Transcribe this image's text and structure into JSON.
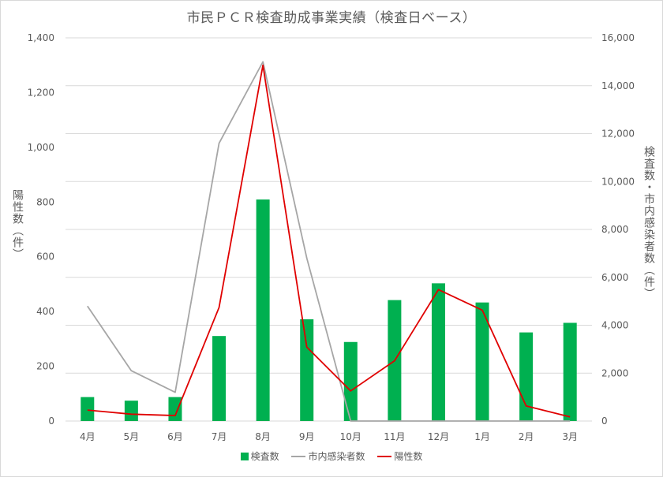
{
  "chart_data": {
    "type": "bar",
    "title": "市民ＰＣＲ検査助成事業実績（検査日ベース）",
    "categories": [
      "4月",
      "5月",
      "6月",
      "7月",
      "8月",
      "9月",
      "10月",
      "11月",
      "12月",
      "1月",
      "2月",
      "3月"
    ],
    "ylabel_left": "陽性数（件）",
    "ylabel_right": "検査数・市内感染者数（件）",
    "ylim_left": [
      0,
      1400
    ],
    "ylim_right": [
      0,
      16000
    ],
    "yticks_left": [
      "0",
      "200",
      "400",
      "600",
      "800",
      "1,000",
      "1,200",
      "1,400"
    ],
    "yticks_right": [
      "0",
      "2,000",
      "4,000",
      "6,000",
      "8,000",
      "10,000",
      "12,000",
      "14,000",
      "16,000"
    ],
    "grid": true,
    "legend_position": "bottom",
    "series": [
      {
        "name": "検査数",
        "type": "bar",
        "axis": "right",
        "color": "#00b050",
        "values": [
          1000,
          850,
          1000,
          3550,
          9250,
          4250,
          3300,
          5050,
          5750,
          4950,
          3700,
          4100
        ]
      },
      {
        "name": "市内感染者数",
        "type": "line",
        "axis": "right",
        "color": "#a6a6a6",
        "values": [
          4800,
          2100,
          1200,
          11600,
          15000,
          6800,
          0,
          0,
          0,
          0,
          0,
          0
        ]
      },
      {
        "name": "陽性数",
        "type": "line",
        "axis": "left",
        "color": "#e00000",
        "values": [
          40,
          25,
          20,
          415,
          1300,
          270,
          110,
          220,
          480,
          405,
          55,
          15
        ]
      }
    ]
  }
}
